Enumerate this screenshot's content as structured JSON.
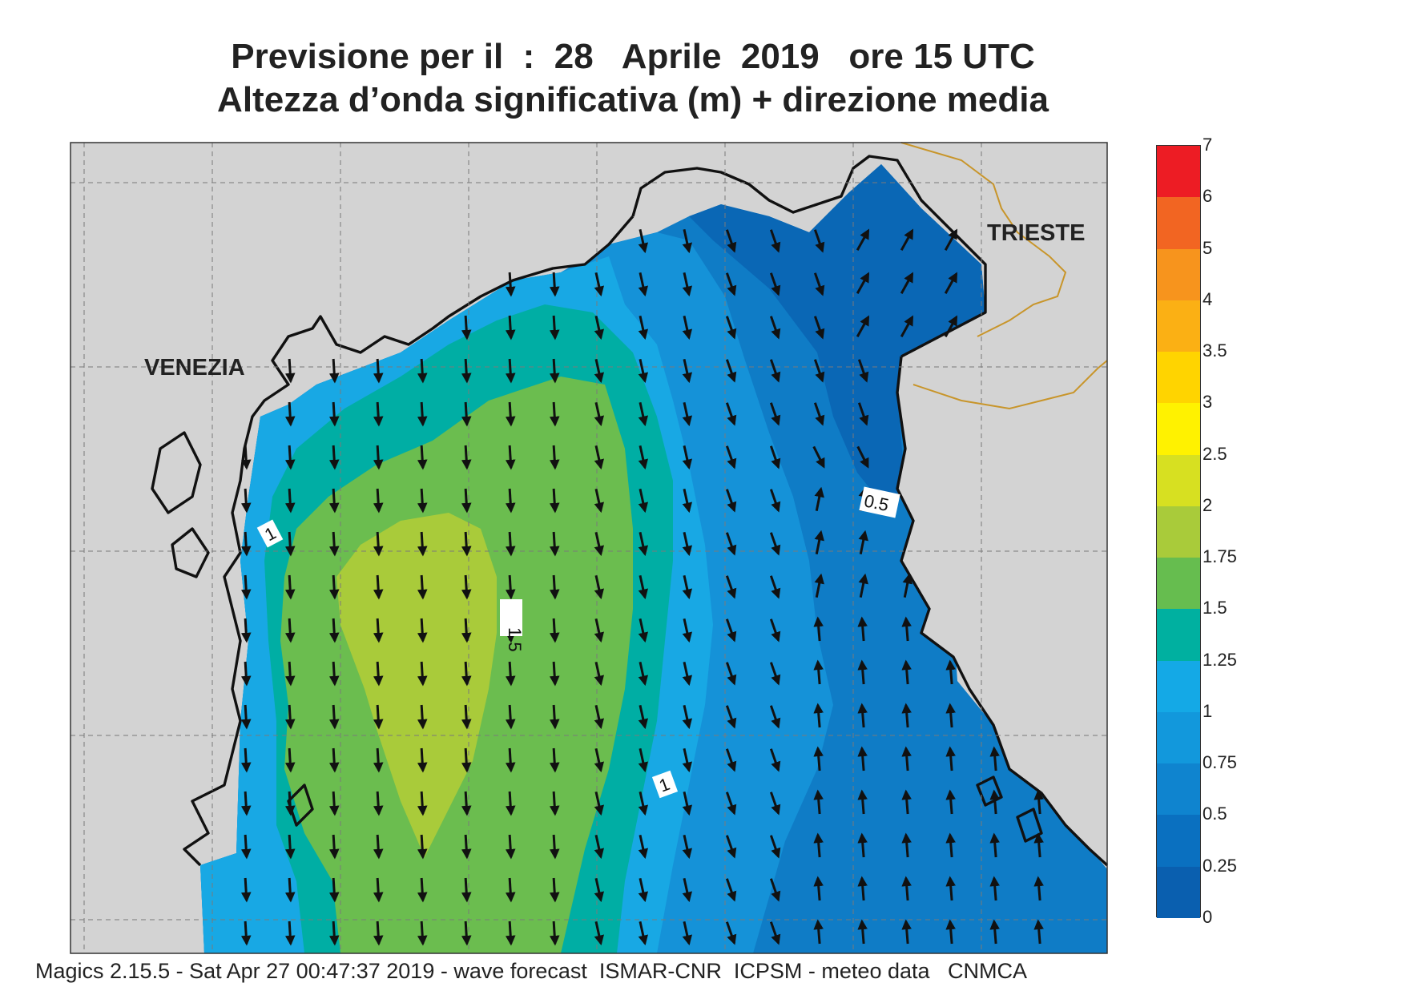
{
  "header": {
    "line1": "Previsione per il  :  28   Aprile  2019   ore 15 UTC",
    "line2": "Altezza d’onda significativa (m) + direzione media"
  },
  "map": {
    "cities": [
      {
        "name": "VENEZIA"
      },
      {
        "name": "TRIESTE"
      }
    ],
    "contour_labels": [
      "1",
      "1.5",
      "0.5",
      "1"
    ],
    "land_color": "#d3d3d3",
    "coast_color": "#111111",
    "border_color": "#c8952a",
    "arrow_color": "#111111",
    "zone_colors": {
      "b025": "#0a67b5",
      "b050": "#0f7cc6",
      "b075": "#1592d8",
      "b100": "#18a8e4",
      "b125": "#00aea4",
      "b150": "#6bbd4f",
      "b175": "#a9cb3a"
    }
  },
  "legend": {
    "bins": [
      {
        "label": "0",
        "color": "#0a5faf"
      },
      {
        "label": "0.25",
        "color": "#0a70c0"
      },
      {
        "label": "0.5",
        "color": "#0f84cf"
      },
      {
        "label": "0.75",
        "color": "#1298dc"
      },
      {
        "label": "1",
        "color": "#14a9e6"
      },
      {
        "label": "1.25",
        "color": "#00b0a0"
      },
      {
        "label": "1.5",
        "color": "#66bd4f"
      },
      {
        "label": "1.75",
        "color": "#a9cb3a"
      },
      {
        "label": "2",
        "color": "#d7e021"
      },
      {
        "label": "2.5",
        "color": "#fff200"
      },
      {
        "label": "3",
        "color": "#ffd400"
      },
      {
        "label": "3.5",
        "color": "#fbb014"
      },
      {
        "label": "4",
        "color": "#f7941d"
      },
      {
        "label": "5",
        "color": "#f26522"
      },
      {
        "label": "6",
        "color": "#ed1c24"
      },
      {
        "label": "7",
        "color": "#ee145b"
      }
    ]
  },
  "footer": {
    "text": "Magics 2.15.5 - Sat Apr 27 00:47:37 2019 - wave forecast  ISMAR-CNR  ICPSM - meteo data   CNMCA"
  }
}
